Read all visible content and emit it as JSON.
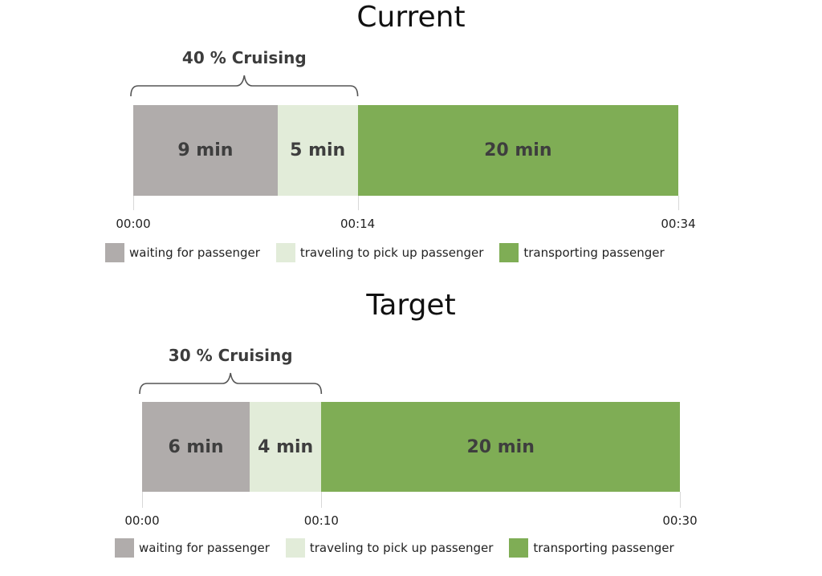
{
  "colors": {
    "waiting": "#b0acab",
    "traveling": "#e2ecd9",
    "transporting": "#7fad55",
    "brace": "#555555"
  },
  "chart_data": [
    {
      "type": "bar",
      "orientation": "horizontal-stacked",
      "title": "Current",
      "annotation": "40 % Cruising",
      "x_unit": "minutes",
      "xlim": [
        0,
        34
      ],
      "series": [
        {
          "name": "waiting for passenger",
          "value": 9,
          "label": "9 min",
          "color_key": "waiting"
        },
        {
          "name": "traveling to pick up passenger",
          "value": 5,
          "label": "5 min",
          "color_key": "traveling"
        },
        {
          "name": "transporting passenger",
          "value": 20,
          "label": "20 min",
          "color_key": "transporting"
        }
      ],
      "ticks": [
        {
          "value": 0,
          "label": "00:00"
        },
        {
          "value": 14,
          "label": "00:14"
        },
        {
          "value": 34,
          "label": "00:34"
        }
      ],
      "brace_range": [
        0,
        14
      ],
      "legend": [
        {
          "label": "waiting for passenger",
          "color_key": "waiting"
        },
        {
          "label": "traveling to pick up passenger",
          "color_key": "traveling"
        },
        {
          "label": "transporting passenger",
          "color_key": "transporting"
        }
      ]
    },
    {
      "type": "bar",
      "orientation": "horizontal-stacked",
      "title": "Target",
      "annotation": "30 % Cruising",
      "x_unit": "minutes",
      "xlim": [
        0,
        30
      ],
      "series": [
        {
          "name": "waiting for passenger",
          "value": 6,
          "label": "6 min",
          "color_key": "waiting"
        },
        {
          "name": "traveling to pick up passenger",
          "value": 4,
          "label": "4 min",
          "color_key": "traveling"
        },
        {
          "name": "transporting passenger",
          "value": 20,
          "label": "20 min",
          "color_key": "transporting"
        }
      ],
      "ticks": [
        {
          "value": 0,
          "label": "00:00"
        },
        {
          "value": 10,
          "label": "00:10"
        },
        {
          "value": 30,
          "label": "00:30"
        }
      ],
      "brace_range": [
        0,
        10
      ],
      "legend": [
        {
          "label": "waiting for passenger",
          "color_key": "waiting"
        },
        {
          "label": "traveling to pick up passenger",
          "color_key": "traveling"
        },
        {
          "label": "transporting passenger",
          "color_key": "transporting"
        }
      ]
    }
  ]
}
